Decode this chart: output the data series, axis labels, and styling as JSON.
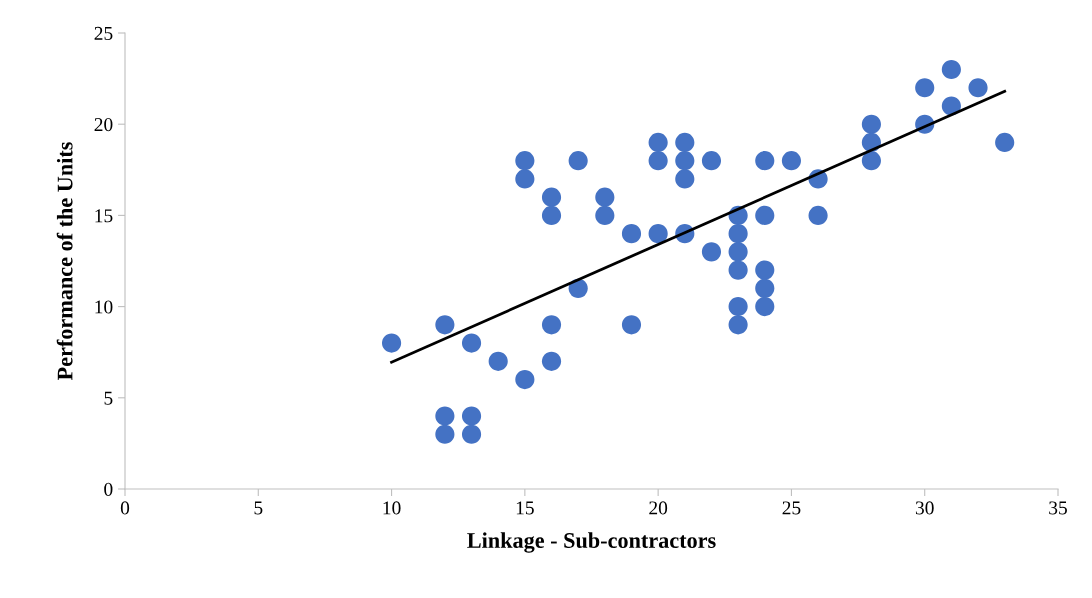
{
  "chart_data": {
    "type": "scatter",
    "xlabel": "Linkage - Sub-contractors",
    "ylabel": "Performance of the Units",
    "xlim": [
      0,
      35
    ],
    "xticks": [
      0,
      5,
      10,
      15,
      20,
      25,
      30,
      35
    ],
    "ylim": [
      0,
      25
    ],
    "yticks": [
      0,
      5,
      10,
      15,
      20,
      25
    ],
    "grid": false,
    "marker": "circle",
    "series": [
      {
        "color": "#4472c4",
        "x": [
          10,
          12,
          12,
          12,
          13,
          13,
          13,
          14,
          15,
          15,
          15,
          16,
          16,
          16,
          16,
          17,
          17,
          18,
          18,
          19,
          19,
          20,
          20,
          20,
          21,
          21,
          21,
          21,
          22,
          22,
          23,
          23,
          23,
          23,
          23,
          23,
          24,
          24,
          24,
          24,
          24,
          25,
          26,
          26,
          28,
          28,
          28,
          30,
          30,
          31,
          31,
          32,
          33
        ],
        "values": [
          8,
          9,
          4,
          3,
          8,
          4,
          3,
          7,
          18,
          17,
          6,
          16,
          15,
          9,
          7,
          18,
          11,
          16,
          15,
          14,
          9,
          19,
          18,
          14,
          19,
          18,
          17,
          14,
          18,
          13,
          15,
          14,
          13,
          12,
          10,
          9,
          18,
          15,
          12,
          11,
          10,
          18,
          17,
          15,
          20,
          19,
          18,
          22,
          20,
          23,
          21,
          22,
          19
        ]
      },
      {
        "type": "line",
        "color": "#000000",
        "x": [
          10,
          33
        ],
        "values": [
          6.95,
          21.8
        ],
        "marker": "none"
      }
    ]
  }
}
